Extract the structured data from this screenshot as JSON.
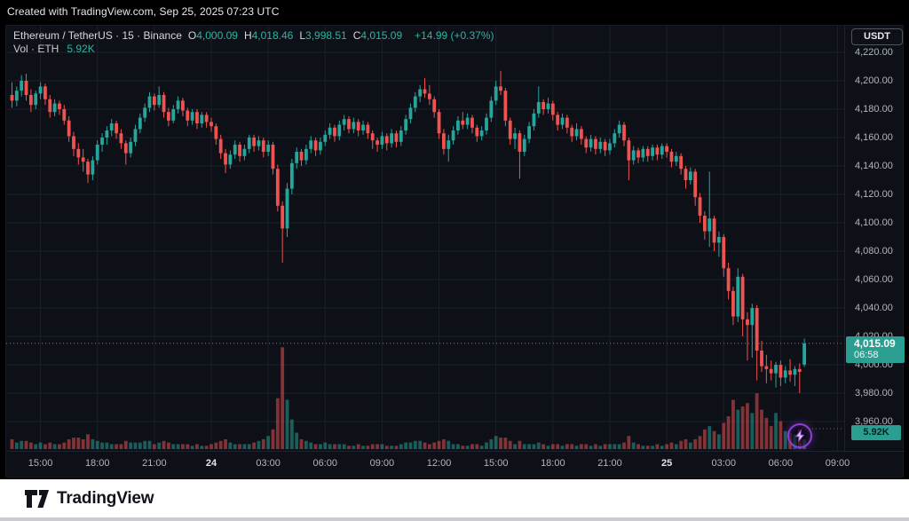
{
  "attribution": {
    "text": "Created with TradingView.com, Sep 25, 2025 07:23 UTC"
  },
  "legend": {
    "symbol_line": "Ethereum / TetherUS · 15 · Binance",
    "ohlc": [
      {
        "k": "O",
        "v": "4,000.09"
      },
      {
        "k": "H",
        "v": "4,018.46"
      },
      {
        "k": "L",
        "v": "3,998.51"
      },
      {
        "k": "C",
        "v": "4,015.09"
      }
    ],
    "change": "+14.99 (+0.37%)",
    "vol_label": "Vol · ETH",
    "vol_value": "5.92K"
  },
  "price_axis": {
    "currency_button": "USDT",
    "badge": {
      "price": "4,015.09",
      "countdown": "06:58"
    },
    "volume_badge": "5.92K"
  },
  "footer": {
    "brand": "TradingView"
  },
  "colors": {
    "up": "#26a69a",
    "down": "#ef5350",
    "grid": "#1b1f2b",
    "axis_text": "#b2b5be",
    "badge_bg": "#2a9e90",
    "accent_purple": "#8d3fd6",
    "bg": "#0e1018"
  },
  "chart_data": {
    "type": "candlestick",
    "title": "Ethereum / TetherUS",
    "exchange": "Binance",
    "interval_minutes": 15,
    "legend_note": "last candle OHLC shown in legend",
    "last_candle": {
      "open": 4000.09,
      "high": 4018.46,
      "low": 3998.51,
      "close": 4015.09,
      "change_text": "+14.99 (+0.37%)"
    },
    "current_price": 4015.09,
    "current_volume_k": 5.92,
    "y_axis_right": true,
    "grid": true,
    "price_ticks": [
      {
        "p": 4220,
        "label": "4,220.00"
      },
      {
        "p": 4200,
        "label": "4,200.00"
      },
      {
        "p": 4180,
        "label": "4,180.00"
      },
      {
        "p": 4160,
        "label": "4,160.00"
      },
      {
        "p": 4140,
        "label": "4,140.00"
      },
      {
        "p": 4120,
        "label": "4,120.00"
      },
      {
        "p": 4100,
        "label": "4,100.00"
      },
      {
        "p": 4080,
        "label": "4,080.00"
      },
      {
        "p": 4060,
        "label": "4,060.00"
      },
      {
        "p": 4040,
        "label": "4,040.00"
      },
      {
        "p": 4020,
        "label": "4,020.00"
      },
      {
        "p": 4000,
        "label": "4,000.00"
      },
      {
        "p": 3980,
        "label": "3,980.00"
      },
      {
        "p": 3960,
        "label": "3,960.00"
      }
    ],
    "time_ticks": [
      {
        "label": "15:00",
        "i": 6,
        "bold": false
      },
      {
        "label": "18:00",
        "i": 18,
        "bold": false
      },
      {
        "label": "21:00",
        "i": 30,
        "bold": false
      },
      {
        "label": "24",
        "i": 42,
        "bold": true
      },
      {
        "label": "03:00",
        "i": 54,
        "bold": false
      },
      {
        "label": "06:00",
        "i": 66,
        "bold": false
      },
      {
        "label": "09:00",
        "i": 78,
        "bold": false
      },
      {
        "label": "12:00",
        "i": 90,
        "bold": false
      },
      {
        "label": "15:00",
        "i": 102,
        "bold": false
      },
      {
        "label": "18:00",
        "i": 114,
        "bold": false
      },
      {
        "label": "21:00",
        "i": 126,
        "bold": false
      },
      {
        "label": "25",
        "i": 138,
        "bold": true
      },
      {
        "label": "03:00",
        "i": 150,
        "bold": false
      },
      {
        "label": "06:00",
        "i": 162,
        "bold": false
      },
      {
        "label": "09:00",
        "i": 174,
        "bold": false
      }
    ],
    "candles": [
      [
        4190,
        4199,
        4181,
        4186,
        6
      ],
      [
        4186,
        4196,
        4182,
        4193,
        4
      ],
      [
        4193,
        4204,
        4189,
        4200,
        5
      ],
      [
        4200,
        4205,
        4186,
        4190,
        5
      ],
      [
        4190,
        4194,
        4178,
        4183,
        4
      ],
      [
        4183,
        4193,
        4180,
        4191,
        3
      ],
      [
        4191,
        4199,
        4187,
        4196,
        4
      ],
      [
        4196,
        4198,
        4183,
        4187,
        3
      ],
      [
        4187,
        4190,
        4174,
        4178,
        4
      ],
      [
        4178,
        4187,
        4175,
        4184,
        3
      ],
      [
        4184,
        4186,
        4176,
        4180,
        3
      ],
      [
        4180,
        4183,
        4169,
        4172,
        4
      ],
      [
        4172,
        4175,
        4157,
        4161,
        6
      ],
      [
        4161,
        4164,
        4147,
        4152,
        7
      ],
      [
        4152,
        4156,
        4141,
        4146,
        7
      ],
      [
        4146,
        4152,
        4136,
        4143,
        6
      ],
      [
        4143,
        4145,
        4128,
        4134,
        9
      ],
      [
        4134,
        4147,
        4130,
        4144,
        6
      ],
      [
        4144,
        4158,
        4141,
        4155,
        5
      ],
      [
        4155,
        4163,
        4150,
        4160,
        4
      ],
      [
        4160,
        4168,
        4155,
        4165,
        4
      ],
      [
        4165,
        4173,
        4161,
        4170,
        3
      ],
      [
        4170,
        4172,
        4159,
        4163,
        3
      ],
      [
        4163,
        4166,
        4152,
        4156,
        3
      ],
      [
        4156,
        4158,
        4141,
        4149,
        5
      ],
      [
        4149,
        4160,
        4146,
        4157,
        4
      ],
      [
        4157,
        4169,
        4154,
        4166,
        4
      ],
      [
        4166,
        4177,
        4163,
        4174,
        4
      ],
      [
        4174,
        4184,
        4171,
        4181,
        5
      ],
      [
        4181,
        4192,
        4178,
        4189,
        5
      ],
      [
        4189,
        4191,
        4179,
        4183,
        3
      ],
      [
        4183,
        4196,
        4181,
        4190,
        4
      ],
      [
        4190,
        4192,
        4174,
        4178,
        5
      ],
      [
        4178,
        4181,
        4168,
        4172,
        4
      ],
      [
        4172,
        4183,
        4170,
        4180,
        3
      ],
      [
        4180,
        4189,
        4177,
        4186,
        3
      ],
      [
        4186,
        4188,
        4175,
        4179,
        3
      ],
      [
        4179,
        4181,
        4168,
        4172,
        3
      ],
      [
        4172,
        4180,
        4169,
        4178,
        2
      ],
      [
        4178,
        4180,
        4166,
        4170,
        3
      ],
      [
        4170,
        4178,
        4167,
        4176,
        2
      ],
      [
        4176,
        4178,
        4167,
        4171,
        2
      ],
      [
        4171,
        4174,
        4164,
        4168,
        3
      ],
      [
        4168,
        4170,
        4155,
        4159,
        4
      ],
      [
        4159,
        4162,
        4145,
        4149,
        5
      ],
      [
        4149,
        4152,
        4135,
        4141,
        6
      ],
      [
        4141,
        4151,
        4138,
        4148,
        4
      ],
      [
        4148,
        4158,
        4145,
        4155,
        3
      ],
      [
        4155,
        4157,
        4143,
        4147,
        3
      ],
      [
        4147,
        4155,
        4144,
        4152,
        3
      ],
      [
        4152,
        4162,
        4149,
        4160,
        3
      ],
      [
        4160,
        4162,
        4150,
        4154,
        4
      ],
      [
        4154,
        4161,
        4151,
        4158,
        5
      ],
      [
        4158,
        4160,
        4146,
        4150,
        6
      ],
      [
        4150,
        4158,
        4147,
        4155,
        8
      ],
      [
        4155,
        4157,
        4134,
        4138,
        12
      ],
      [
        4138,
        4141,
        4108,
        4112,
        31
      ],
      [
        4112,
        4115,
        4072,
        4096,
        62
      ],
      [
        4096,
        4128,
        4090,
        4124,
        30
      ],
      [
        4124,
        4145,
        4120,
        4142,
        18
      ],
      [
        4142,
        4153,
        4138,
        4150,
        10
      ],
      [
        4150,
        4152,
        4140,
        4144,
        6
      ],
      [
        4144,
        4155,
        4141,
        4152,
        5
      ],
      [
        4152,
        4161,
        4149,
        4158,
        4
      ],
      [
        4158,
        4160,
        4147,
        4151,
        3
      ],
      [
        4151,
        4160,
        4148,
        4157,
        3
      ],
      [
        4157,
        4165,
        4154,
        4162,
        4
      ],
      [
        4162,
        4170,
        4159,
        4167,
        3
      ],
      [
        4167,
        4169,
        4157,
        4161,
        3
      ],
      [
        4161,
        4172,
        4158,
        4169,
        3
      ],
      [
        4169,
        4176,
        4165,
        4173,
        3
      ],
      [
        4173,
        4175,
        4163,
        4166,
        2
      ],
      [
        4166,
        4174,
        4163,
        4171,
        2
      ],
      [
        4171,
        4173,
        4161,
        4165,
        3
      ],
      [
        4165,
        4172,
        4162,
        4169,
        2
      ],
      [
        4169,
        4171,
        4159,
        4163,
        2
      ],
      [
        4163,
        4165,
        4152,
        4158,
        3
      ],
      [
        4158,
        4160,
        4150,
        4155,
        3
      ],
      [
        4155,
        4164,
        4152,
        4161,
        3
      ],
      [
        4161,
        4163,
        4151,
        4156,
        2
      ],
      [
        4156,
        4166,
        4153,
        4163,
        2
      ],
      [
        4163,
        4165,
        4153,
        4157,
        2
      ],
      [
        4157,
        4168,
        4154,
        4165,
        3
      ],
      [
        4165,
        4176,
        4162,
        4173,
        4
      ],
      [
        4173,
        4184,
        4170,
        4181,
        4
      ],
      [
        4181,
        4192,
        4178,
        4189,
        5
      ],
      [
        4189,
        4197,
        4185,
        4194,
        5
      ],
      [
        4194,
        4202,
        4188,
        4191,
        4
      ],
      [
        4191,
        4197,
        4183,
        4187,
        3
      ],
      [
        4187,
        4189,
        4174,
        4178,
        4
      ],
      [
        4178,
        4180,
        4159,
        4163,
        5
      ],
      [
        4163,
        4166,
        4148,
        4152,
        6
      ],
      [
        4152,
        4162,
        4143,
        4158,
        5
      ],
      [
        4158,
        4168,
        4155,
        4165,
        3
      ],
      [
        4165,
        4175,
        4162,
        4172,
        3
      ],
      [
        4172,
        4178,
        4166,
        4169,
        2
      ],
      [
        4169,
        4177,
        4166,
        4174,
        2
      ],
      [
        4174,
        4176,
        4163,
        4167,
        3
      ],
      [
        4167,
        4169,
        4157,
        4161,
        3
      ],
      [
        4161,
        4168,
        4158,
        4165,
        2
      ],
      [
        4165,
        4177,
        4162,
        4174,
        4
      ],
      [
        4174,
        4189,
        4171,
        4186,
        6
      ],
      [
        4186,
        4200,
        4183,
        4196,
        8
      ],
      [
        4196,
        4207,
        4190,
        4193,
        7
      ],
      [
        4193,
        4195,
        4168,
        4172,
        7
      ],
      [
        4172,
        4174,
        4155,
        4159,
        5
      ],
      [
        4159,
        4167,
        4152,
        4163,
        3
      ],
      [
        4163,
        4165,
        4131,
        4150,
        5
      ],
      [
        4150,
        4162,
        4147,
        4159,
        3
      ],
      [
        4159,
        4171,
        4156,
        4168,
        3
      ],
      [
        4168,
        4180,
        4165,
        4177,
        3
      ],
      [
        4177,
        4196,
        4174,
        4185,
        4
      ],
      [
        4185,
        4187,
        4176,
        4180,
        3
      ],
      [
        4180,
        4188,
        4177,
        4184,
        2
      ],
      [
        4184,
        4186,
        4172,
        4176,
        3
      ],
      [
        4176,
        4178,
        4165,
        4169,
        3
      ],
      [
        4169,
        4177,
        4166,
        4174,
        2
      ],
      [
        4174,
        4176,
        4163,
        4167,
        3
      ],
      [
        4167,
        4169,
        4157,
        4161,
        3
      ],
      [
        4161,
        4170,
        4158,
        4166,
        2
      ],
      [
        4166,
        4168,
        4155,
        4159,
        3
      ],
      [
        4159,
        4161,
        4149,
        4153,
        3
      ],
      [
        4153,
        4162,
        4150,
        4159,
        2
      ],
      [
        4159,
        4161,
        4148,
        4152,
        3
      ],
      [
        4152,
        4160,
        4149,
        4157,
        2
      ],
      [
        4157,
        4159,
        4147,
        4151,
        3
      ],
      [
        4151,
        4159,
        4148,
        4156,
        3
      ],
      [
        4156,
        4166,
        4153,
        4163,
        3
      ],
      [
        4163,
        4172,
        4160,
        4169,
        3
      ],
      [
        4169,
        4171,
        4154,
        4158,
        4
      ],
      [
        4158,
        4160,
        4130,
        4144,
        8
      ],
      [
        4144,
        4154,
        4141,
        4151,
        4
      ],
      [
        4151,
        4153,
        4142,
        4146,
        3
      ],
      [
        4146,
        4154,
        4143,
        4152,
        2
      ],
      [
        4152,
        4154,
        4143,
        4147,
        2
      ],
      [
        4147,
        4155,
        4144,
        4153,
        2
      ],
      [
        4153,
        4155,
        4144,
        4148,
        3
      ],
      [
        4148,
        4156,
        4145,
        4154,
        2
      ],
      [
        4154,
        4156,
        4146,
        4150,
        3
      ],
      [
        4150,
        4152,
        4139,
        4143,
        4
      ],
      [
        4143,
        4150,
        4140,
        4147,
        3
      ],
      [
        4147,
        4149,
        4134,
        4138,
        5
      ],
      [
        4138,
        4140,
        4124,
        4130,
        6
      ],
      [
        4130,
        4139,
        4127,
        4136,
        4
      ],
      [
        4136,
        4138,
        4112,
        4118,
        6
      ],
      [
        4118,
        4121,
        4100,
        4105,
        8
      ],
      [
        4105,
        4108,
        4088,
        4094,
        12
      ],
      [
        4094,
        4136,
        4083,
        4103,
        14
      ],
      [
        4103,
        4105,
        4080,
        4086,
        11
      ],
      [
        4086,
        4094,
        4076,
        4090,
        9
      ],
      [
        4090,
        4092,
        4062,
        4068,
        16
      ],
      [
        4068,
        4072,
        4046,
        4052,
        20
      ],
      [
        4052,
        4055,
        4028,
        4034,
        30
      ],
      [
        4034,
        4068,
        4030,
        4062,
        24
      ],
      [
        4062,
        4064,
        4020,
        4032,
        26
      ],
      [
        4032,
        4037,
        4003,
        4028,
        28
      ],
      [
        4028,
        4043,
        4005,
        4040,
        22
      ],
      [
        4040,
        4042,
        3989,
        4010,
        34
      ],
      [
        4010,
        4017,
        3995,
        3999,
        24
      ],
      [
        3999,
        4007,
        3987,
        3997,
        19
      ],
      [
        3997,
        4003,
        3989,
        3994,
        14
      ],
      [
        3994,
        4002,
        3984,
        4000,
        22
      ],
      [
        4000,
        4003,
        3985,
        3991,
        17
      ],
      [
        3991,
        3999,
        3987,
        3996,
        11
      ],
      [
        3996,
        4004,
        3988,
        3993,
        10
      ],
      [
        3993,
        3999,
        3985,
        3997,
        9
      ],
      [
        3997,
        4001,
        3980,
        3995,
        12
      ],
      [
        4000.09,
        4018.46,
        3998.51,
        4015.09,
        5.92
      ]
    ],
    "volume_unit": "K ETH",
    "volume_max_k": 62
  }
}
